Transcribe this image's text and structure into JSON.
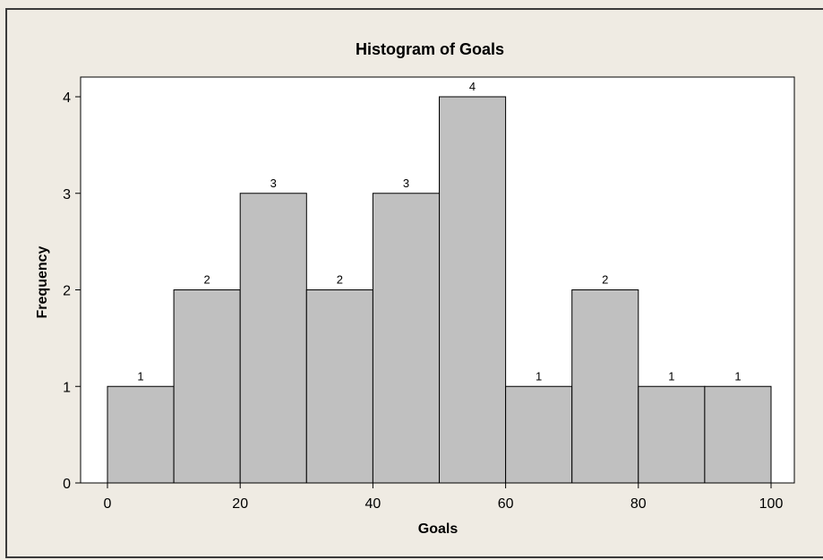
{
  "chart_data": {
    "type": "bar",
    "title": "Histogram of Goals",
    "xlabel": "Goals",
    "ylabel": "Frequency",
    "bins": [
      {
        "start": 0,
        "end": 10,
        "count": 1
      },
      {
        "start": 10,
        "end": 20,
        "count": 2
      },
      {
        "start": 20,
        "end": 30,
        "count": 3
      },
      {
        "start": 30,
        "end": 40,
        "count": 2
      },
      {
        "start": 40,
        "end": 50,
        "count": 3
      },
      {
        "start": 50,
        "end": 60,
        "count": 4
      },
      {
        "start": 60,
        "end": 70,
        "count": 1
      },
      {
        "start": 70,
        "end": 80,
        "count": 2
      },
      {
        "start": 80,
        "end": 90,
        "count": 1
      },
      {
        "start": 90,
        "end": 100,
        "count": 1
      }
    ],
    "x_ticks": [
      "0",
      "20",
      "40",
      "60",
      "80",
      "100"
    ],
    "y_ticks": [
      "0",
      "1",
      "2",
      "3",
      "4"
    ],
    "xlim": [
      0,
      100
    ],
    "ylim": [
      0,
      4
    ],
    "data_labels": true,
    "grid": false,
    "legend": "none",
    "colors": {
      "bar_fill": "#c0c0c0",
      "bar_stroke": "#000000",
      "frame_background": "#efebe3",
      "plot_background": "#ffffff"
    }
  }
}
